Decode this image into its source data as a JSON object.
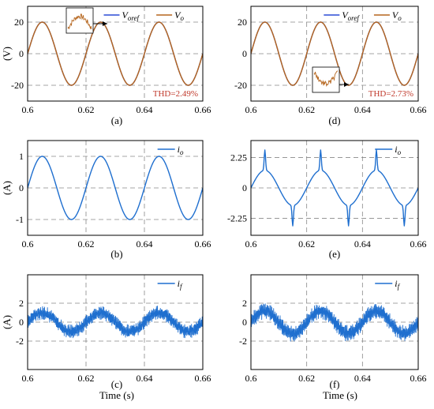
{
  "xlabel": "Time (s)",
  "colors": {
    "ref": "#2c4bd6",
    "vo": "#b5651d",
    "current": "#1f6fcf",
    "thd": "#c0392b",
    "grid": "#888888"
  },
  "chart_data": [
    {
      "id": "a",
      "type": "line",
      "panel_label": "(a)",
      "ylabel": "(V)",
      "xlim": [
        0.6,
        0.66
      ],
      "ylim": [
        -30,
        30
      ],
      "xticks": [
        0.6,
        0.62,
        0.64,
        0.66
      ],
      "xtick_labels": [
        "0.6",
        "0.62",
        "0.64",
        "0.66"
      ],
      "yticks": [
        20,
        0,
        -20
      ],
      "ytick_labels": [
        "20",
        "0",
        "-20"
      ],
      "grid": true,
      "legend_position": "top",
      "series": [
        {
          "name": "Voref",
          "legend": [
            "V",
            "oref"
          ],
          "shape": "sine",
          "amplitude": 20,
          "frequency_hz": 50,
          "color": "#2c4bd6"
        },
        {
          "name": "Vo",
          "legend": [
            "V",
            "o"
          ],
          "shape": "sine",
          "amplitude": 20,
          "frequency_hz": 50,
          "color": "#b5651d"
        }
      ],
      "annotation": "THD=2.49%",
      "inset": "zoom of Vo at positive peak"
    },
    {
      "id": "b",
      "type": "line",
      "panel_label": "(b)",
      "ylabel": "(A)",
      "xlim": [
        0.6,
        0.66
      ],
      "ylim": [
        -1.5,
        1.5
      ],
      "xticks": [
        0.6,
        0.62,
        0.64,
        0.66
      ],
      "xtick_labels": [
        "0.6",
        "0.62",
        "0.64",
        "0.66"
      ],
      "yticks": [
        1,
        0,
        -1
      ],
      "ytick_labels": [
        "1",
        "0",
        "-1"
      ],
      "grid": true,
      "legend_position": "top-right",
      "series": [
        {
          "name": "io",
          "legend": [
            "i",
            "o"
          ],
          "shape": "sine",
          "amplitude": 1,
          "frequency_hz": 50,
          "color": "#1f6fcf"
        }
      ]
    },
    {
      "id": "c",
      "type": "line",
      "panel_label": "(c)",
      "ylabel": "(A)",
      "xlim": [
        0.6,
        0.66
      ],
      "ylim": [
        -5,
        5
      ],
      "xticks": [
        0.6,
        0.62,
        0.64,
        0.66
      ],
      "xtick_labels": [
        "0.6",
        "0.62",
        "0.64",
        "0.66"
      ],
      "yticks": [
        2,
        0,
        -2
      ],
      "ytick_labels": [
        "2",
        "0",
        "-2"
      ],
      "grid": true,
      "legend_position": "top-right",
      "series": [
        {
          "name": "if",
          "legend": [
            "i",
            "f"
          ],
          "shape": "sine+ripple",
          "amplitude": 1,
          "ripple": 0.85,
          "frequency_hz": 50,
          "color": "#1f6fcf"
        }
      ]
    },
    {
      "id": "d",
      "type": "line",
      "panel_label": "(d)",
      "ylabel": "",
      "xlim": [
        0.6,
        0.66
      ],
      "ylim": [
        -30,
        30
      ],
      "xticks": [
        0.6,
        0.62,
        0.64,
        0.66
      ],
      "xtick_labels": [
        "0.6",
        "0.62",
        "0.64",
        "0.66"
      ],
      "yticks": [
        20,
        0,
        -20
      ],
      "ytick_labels": [
        "20",
        "0",
        "-20"
      ],
      "grid": true,
      "legend_position": "top",
      "series": [
        {
          "name": "Voref",
          "legend": [
            "V",
            "oref"
          ],
          "shape": "sine",
          "amplitude": 20,
          "frequency_hz": 50,
          "color": "#2c4bd6"
        },
        {
          "name": "Vo",
          "legend": [
            "V",
            "o"
          ],
          "shape": "sine",
          "amplitude": 20,
          "frequency_hz": 50,
          "color": "#b5651d"
        }
      ],
      "annotation": "THD=2.73%",
      "inset": "zoom of Vo at negative peak"
    },
    {
      "id": "e",
      "type": "line",
      "panel_label": "(e)",
      "ylabel": "",
      "xlim": [
        0.6,
        0.66
      ],
      "ylim": [
        -3.5,
        3.5
      ],
      "xticks": [
        0.6,
        0.62,
        0.64,
        0.66
      ],
      "xtick_labels": [
        "0.6",
        "0.62",
        "0.64",
        "0.66"
      ],
      "yticks": [
        2.25,
        0,
        -2.25
      ],
      "ytick_labels": [
        "2.25",
        "0",
        "-2.25"
      ],
      "grid": true,
      "legend_position": "top-right",
      "series": [
        {
          "name": "io",
          "legend": [
            "i",
            "o"
          ],
          "shape": "sine+spikes",
          "amplitude": 1.3,
          "peak": 2.8,
          "frequency_hz": 50,
          "color": "#1f6fcf"
        }
      ]
    },
    {
      "id": "f",
      "type": "line",
      "panel_label": "(f)",
      "ylabel": "",
      "xlim": [
        0.6,
        0.66
      ],
      "ylim": [
        -5,
        5
      ],
      "xticks": [
        0.6,
        0.62,
        0.64,
        0.66
      ],
      "xtick_labels": [
        "0.6",
        "0.62",
        "0.64",
        "0.66"
      ],
      "yticks": [
        2,
        0,
        -2
      ],
      "ytick_labels": [
        "2",
        "0",
        "-2"
      ],
      "grid": true,
      "legend_position": "top-right",
      "series": [
        {
          "name": "if",
          "legend": [
            "i",
            "f"
          ],
          "shape": "sine+ripple",
          "amplitude": 1.2,
          "ripple": 1.0,
          "frequency_hz": 50,
          "color": "#1f6fcf"
        }
      ]
    }
  ]
}
